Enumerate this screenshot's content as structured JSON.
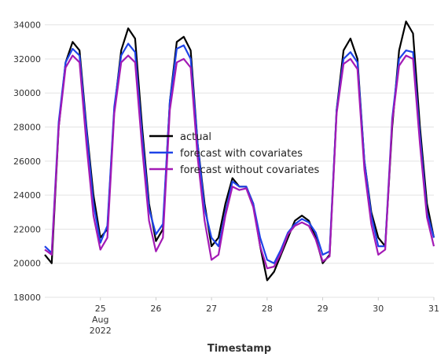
{
  "chart_data": {
    "type": "line",
    "xlabel": "Timestamp",
    "ylabel": "",
    "ylim": [
      18000,
      35000
    ],
    "xlim": [
      "2022-08-24",
      "2022-08-31"
    ],
    "grid": true,
    "legend_position": "center",
    "yticks": [
      "18000",
      "20000",
      "22000",
      "24000",
      "26000",
      "28000",
      "30000",
      "32000",
      "34000"
    ],
    "xticks": [
      {
        "date": "2022-08-25",
        "lines": [
          "25",
          "Aug",
          "2022"
        ]
      },
      {
        "date": "2022-08-26",
        "lines": [
          "26"
        ]
      },
      {
        "date": "2022-08-27",
        "lines": [
          "27"
        ]
      },
      {
        "date": "2022-08-28",
        "lines": [
          "28"
        ]
      },
      {
        "date": "2022-08-29",
        "lines": [
          "29"
        ]
      },
      {
        "date": "2022-08-30",
        "lines": [
          "30"
        ]
      },
      {
        "date": "2022-08-31",
        "lines": [
          "31"
        ]
      }
    ],
    "series": [
      {
        "name": "actual",
        "color": "#000000",
        "points": [
          [
            "2022-08-24 00:00",
            20500
          ],
          [
            "2022-08-24 03:00",
            20000
          ],
          [
            "2022-08-24 06:00",
            28000
          ],
          [
            "2022-08-24 09:00",
            31800
          ],
          [
            "2022-08-24 12:00",
            33000
          ],
          [
            "2022-08-24 15:00",
            32500
          ],
          [
            "2022-08-24 18:00",
            28000
          ],
          [
            "2022-08-24 21:00",
            24000
          ],
          [
            "2022-08-25 00:00",
            21500
          ],
          [
            "2022-08-25 03:00",
            22000
          ],
          [
            "2022-08-25 06:00",
            29000
          ],
          [
            "2022-08-25 09:00",
            32500
          ],
          [
            "2022-08-25 12:00",
            33800
          ],
          [
            "2022-08-25 15:00",
            33200
          ],
          [
            "2022-08-25 18:00",
            28000
          ],
          [
            "2022-08-25 21:00",
            23500
          ],
          [
            "2022-08-26 00:00",
            21300
          ],
          [
            "2022-08-26 03:00",
            22000
          ],
          [
            "2022-08-26 06:00",
            29500
          ],
          [
            "2022-08-26 09:00",
            33000
          ],
          [
            "2022-08-26 12:00",
            33300
          ],
          [
            "2022-08-26 15:00",
            32500
          ],
          [
            "2022-08-26 18:00",
            27000
          ],
          [
            "2022-08-26 21:00",
            23500
          ],
          [
            "2022-08-27 00:00",
            21000
          ],
          [
            "2022-08-27 03:00",
            21500
          ],
          [
            "2022-08-27 06:00",
            23500
          ],
          [
            "2022-08-27 09:00",
            25000
          ],
          [
            "2022-08-27 12:00",
            24500
          ],
          [
            "2022-08-27 15:00",
            24500
          ],
          [
            "2022-08-27 18:00",
            23500
          ],
          [
            "2022-08-27 21:00",
            21000
          ],
          [
            "2022-08-28 00:00",
            19000
          ],
          [
            "2022-08-28 03:00",
            19500
          ],
          [
            "2022-08-28 06:00",
            20500
          ],
          [
            "2022-08-28 09:00",
            21500
          ],
          [
            "2022-08-28 12:00",
            22500
          ],
          [
            "2022-08-28 15:00",
            22800
          ],
          [
            "2022-08-28 18:00",
            22500
          ],
          [
            "2022-08-28 21:00",
            21500
          ],
          [
            "2022-08-29 00:00",
            20000
          ],
          [
            "2022-08-29 03:00",
            20500
          ],
          [
            "2022-08-29 06:00",
            29000
          ],
          [
            "2022-08-29 09:00",
            32500
          ],
          [
            "2022-08-29 12:00",
            33200
          ],
          [
            "2022-08-29 15:00",
            32000
          ],
          [
            "2022-08-29 18:00",
            26000
          ],
          [
            "2022-08-29 21:00",
            23000
          ],
          [
            "2022-08-30 00:00",
            21500
          ],
          [
            "2022-08-30 03:00",
            21000
          ],
          [
            "2022-08-30 06:00",
            28000
          ],
          [
            "2022-08-30 09:00",
            32500
          ],
          [
            "2022-08-30 12:00",
            34200
          ],
          [
            "2022-08-30 15:00",
            33500
          ],
          [
            "2022-08-30 18:00",
            28000
          ],
          [
            "2022-08-30 21:00",
            23500
          ],
          [
            "2022-08-31 00:00",
            21500
          ]
        ]
      },
      {
        "name": "forecast with covariates",
        "color": "#1e43e8",
        "points": [
          [
            "2022-08-24 00:00",
            21000
          ],
          [
            "2022-08-24 03:00",
            20600
          ],
          [
            "2022-08-24 06:00",
            28300
          ],
          [
            "2022-08-24 09:00",
            31800
          ],
          [
            "2022-08-24 12:00",
            32600
          ],
          [
            "2022-08-24 15:00",
            32200
          ],
          [
            "2022-08-24 18:00",
            27800
          ],
          [
            "2022-08-24 21:00",
            23500
          ],
          [
            "2022-08-25 00:00",
            21200
          ],
          [
            "2022-08-25 03:00",
            22200
          ],
          [
            "2022-08-25 06:00",
            29200
          ],
          [
            "2022-08-25 09:00",
            32200
          ],
          [
            "2022-08-25 12:00",
            32900
          ],
          [
            "2022-08-25 15:00",
            32400
          ],
          [
            "2022-08-25 18:00",
            27500
          ],
          [
            "2022-08-25 21:00",
            23200
          ],
          [
            "2022-08-26 00:00",
            21700
          ],
          [
            "2022-08-26 03:00",
            22300
          ],
          [
            "2022-08-26 06:00",
            29500
          ],
          [
            "2022-08-26 09:00",
            32600
          ],
          [
            "2022-08-26 12:00",
            32800
          ],
          [
            "2022-08-26 15:00",
            32000
          ],
          [
            "2022-08-26 18:00",
            27000
          ],
          [
            "2022-08-26 21:00",
            23200
          ],
          [
            "2022-08-27 00:00",
            21500
          ],
          [
            "2022-08-27 03:00",
            21000
          ],
          [
            "2022-08-27 06:00",
            23000
          ],
          [
            "2022-08-27 09:00",
            24800
          ],
          [
            "2022-08-27 12:00",
            24500
          ],
          [
            "2022-08-27 15:00",
            24500
          ],
          [
            "2022-08-27 18:00",
            23500
          ],
          [
            "2022-08-27 21:00",
            21500
          ],
          [
            "2022-08-28 00:00",
            20200
          ],
          [
            "2022-08-28 03:00",
            20000
          ],
          [
            "2022-08-28 06:00",
            20800
          ],
          [
            "2022-08-28 09:00",
            21800
          ],
          [
            "2022-08-28 12:00",
            22300
          ],
          [
            "2022-08-28 15:00",
            22600
          ],
          [
            "2022-08-28 18:00",
            22400
          ],
          [
            "2022-08-28 21:00",
            21800
          ],
          [
            "2022-08-29 00:00",
            20500
          ],
          [
            "2022-08-29 03:00",
            20700
          ],
          [
            "2022-08-29 06:00",
            29000
          ],
          [
            "2022-08-29 09:00",
            32000
          ],
          [
            "2022-08-29 12:00",
            32400
          ],
          [
            "2022-08-29 15:00",
            31800
          ],
          [
            "2022-08-29 18:00",
            26000
          ],
          [
            "2022-08-29 21:00",
            22800
          ],
          [
            "2022-08-30 00:00",
            21000
          ],
          [
            "2022-08-30 03:00",
            21000
          ],
          [
            "2022-08-30 06:00",
            28500
          ],
          [
            "2022-08-30 09:00",
            32000
          ],
          [
            "2022-08-30 12:00",
            32500
          ],
          [
            "2022-08-30 15:00",
            32400
          ],
          [
            "2022-08-30 18:00",
            27500
          ],
          [
            "2022-08-30 21:00",
            23000
          ],
          [
            "2022-08-31 00:00",
            21500
          ]
        ]
      },
      {
        "name": "forecast without covariates",
        "color": "#a31ab5",
        "points": [
          [
            "2022-08-24 00:00",
            20800
          ],
          [
            "2022-08-24 03:00",
            20500
          ],
          [
            "2022-08-24 06:00",
            28000
          ],
          [
            "2022-08-24 09:00",
            31500
          ],
          [
            "2022-08-24 12:00",
            32200
          ],
          [
            "2022-08-24 15:00",
            31800
          ],
          [
            "2022-08-24 18:00",
            27000
          ],
          [
            "2022-08-24 21:00",
            22800
          ],
          [
            "2022-08-25 00:00",
            20800
          ],
          [
            "2022-08-25 03:00",
            21500
          ],
          [
            "2022-08-25 06:00",
            28800
          ],
          [
            "2022-08-25 09:00",
            31800
          ],
          [
            "2022-08-25 12:00",
            32200
          ],
          [
            "2022-08-25 15:00",
            31800
          ],
          [
            "2022-08-25 18:00",
            26800
          ],
          [
            "2022-08-25 21:00",
            22500
          ],
          [
            "2022-08-26 00:00",
            20700
          ],
          [
            "2022-08-26 03:00",
            21500
          ],
          [
            "2022-08-26 06:00",
            29000
          ],
          [
            "2022-08-26 09:00",
            31800
          ],
          [
            "2022-08-26 12:00",
            32000
          ],
          [
            "2022-08-26 15:00",
            31500
          ],
          [
            "2022-08-26 18:00",
            26200
          ],
          [
            "2022-08-26 21:00",
            22500
          ],
          [
            "2022-08-27 00:00",
            20200
          ],
          [
            "2022-08-27 03:00",
            20500
          ],
          [
            "2022-08-27 06:00",
            22800
          ],
          [
            "2022-08-27 09:00",
            24500
          ],
          [
            "2022-08-27 12:00",
            24300
          ],
          [
            "2022-08-27 15:00",
            24400
          ],
          [
            "2022-08-27 18:00",
            23300
          ],
          [
            "2022-08-27 21:00",
            21000
          ],
          [
            "2022-08-28 00:00",
            19700
          ],
          [
            "2022-08-28 03:00",
            19800
          ],
          [
            "2022-08-28 06:00",
            20600
          ],
          [
            "2022-08-28 09:00",
            21700
          ],
          [
            "2022-08-28 12:00",
            22200
          ],
          [
            "2022-08-28 15:00",
            22400
          ],
          [
            "2022-08-28 18:00",
            22200
          ],
          [
            "2022-08-28 21:00",
            21400
          ],
          [
            "2022-08-29 00:00",
            20100
          ],
          [
            "2022-08-29 03:00",
            20400
          ],
          [
            "2022-08-29 06:00",
            28800
          ],
          [
            "2022-08-29 09:00",
            31700
          ],
          [
            "2022-08-29 12:00",
            32000
          ],
          [
            "2022-08-29 15:00",
            31400
          ],
          [
            "2022-08-29 18:00",
            25500
          ],
          [
            "2022-08-29 21:00",
            22300
          ],
          [
            "2022-08-30 00:00",
            20500
          ],
          [
            "2022-08-30 03:00",
            20800
          ],
          [
            "2022-08-30 06:00",
            28300
          ],
          [
            "2022-08-30 09:00",
            31600
          ],
          [
            "2022-08-30 12:00",
            32200
          ],
          [
            "2022-08-30 15:00",
            32000
          ],
          [
            "2022-08-30 18:00",
            27000
          ],
          [
            "2022-08-30 21:00",
            22700
          ],
          [
            "2022-08-31 00:00",
            21000
          ]
        ]
      }
    ]
  }
}
